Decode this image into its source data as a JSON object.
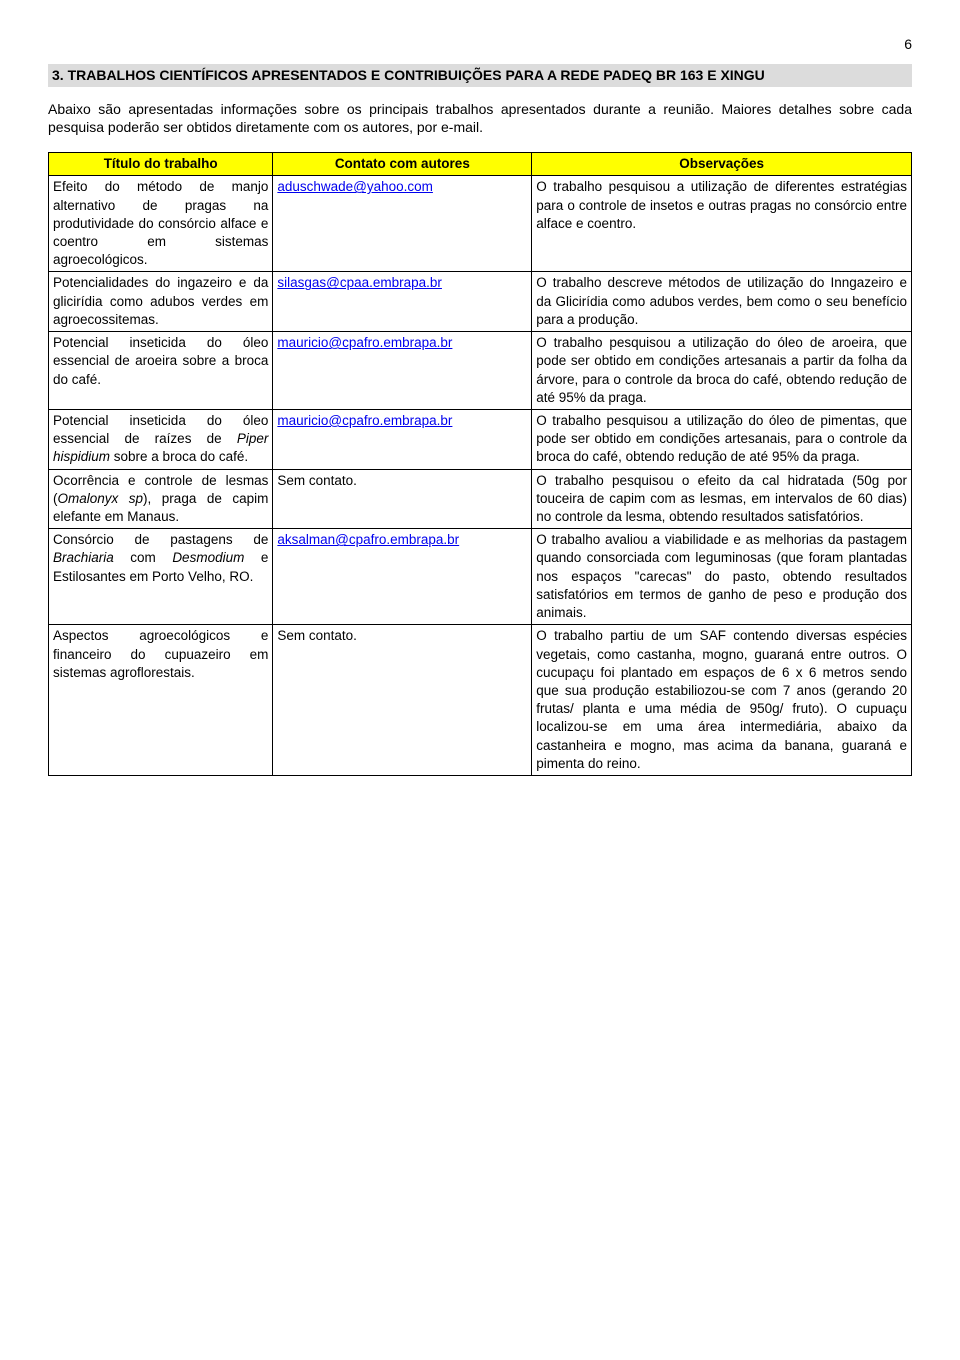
{
  "page_number": "6",
  "section_title": "3. TRABALHOS CIENTÍFICOS APRESENTADOS E CONTRIBUIÇÕES PARA A REDE PADEQ BR 163 E XINGU",
  "intro": "Abaixo são apresentadas informações sobre os principais trabalhos apresentados durante a reunião. Maiores detalhes sobre cada pesquisa poderão ser obtidos diretamente com os autores, por e-mail.",
  "headers": {
    "title": "Título do trabalho",
    "contact": "Contato com autores",
    "obs": "Observações"
  },
  "rows": [
    {
      "title_html": "Efeito do método de manjo alternativo de pragas na produtividade do consórcio alface e coentro em sistemas agroecológicos.",
      "contact_html": "<a class='mail' href='#'>aduschwade@yahoo.com</a>",
      "obs_html": "O trabalho pesquisou a utilização de diferentes estratégias para o controle de insetos e outras pragas no consórcio entre alface e coentro."
    },
    {
      "title_html": "Potencialidades do ingazeiro e da glicirídia como adubos verdes em agroecossitemas.",
      "contact_html": "<a class='mail' href='#'>silasgas@cpaa.embrapa.br</a>",
      "obs_html": "O trabalho descreve métodos de utilização do Inngazeiro e da Glicirídia como adubos verdes, bem como o seu benefício para a produção."
    },
    {
      "title_html": "Potencial inseticida do óleo essencial de aroeira sobre a broca do café.",
      "contact_html": "<a class='mail' href='#'>mauricio@cpafro.embrapa.br</a>",
      "obs_html": "O trabalho pesquisou a utilização do óleo de aroeira, que pode ser obtido em condições artesanais a partir da folha da árvore, para o controle da broca do café, obtendo redução de até 95% da praga."
    },
    {
      "title_html": "Potencial inseticida do óleo essencial de raízes de <span class='ital'>Piper hispidium</span> sobre a broca do café.",
      "contact_html": "<a class='mail' href='#'>mauricio@cpafro.embrapa.br</a>",
      "obs_html": "O trabalho pesquisou a utilização do óleo de pimentas, que pode ser obtido em condições artesanais, para o controle da broca do café, obtendo redução de até 95% da praga."
    },
    {
      "title_html": "Ocorrência e controle de lesmas (<span class='ital'>Omalonyx sp</span>), praga de capim elefante em Manaus.",
      "contact_html": "Sem contato.",
      "obs_html": "O trabalho pesquisou o efeito da cal hidratada (50g por touceira de capim com as lesmas, em intervalos de 60 dias) no controle da lesma, obtendo resultados satisfatórios."
    },
    {
      "title_html": "Consórcio de pastagens de <span class='ital'>Brachiaria</span> com <span class='ital'>Desmodium</span> e Estilosantes em Porto Velho, RO.",
      "contact_html": "<a class='mail' href='#'>aksalman@cpafro.embrapa.br</a>",
      "obs_html": "O trabalho avaliou a viabilidade e as melhorias da pastagem quando consorciada com leguminosas (que foram plantadas nos espaços \"carecas\" do pasto, obtendo resultados satisfatórios em termos de ganho de peso e produção dos animais."
    },
    {
      "title_html": "Aspectos agroecológicos e financeiro do cupuazeiro em sistemas agroflorestais.",
      "contact_html": "Sem contato.",
      "obs_html": "O trabalho partiu de um SAF contendo diversas espécies vegetais, como castanha, mogno, guaraná entre outros. O cucupaçu foi plantado em espaços de 6 x 6 metros sendo que sua produção estabiliozou-se com 7 anos (gerando 20 frutas/ planta e uma média de 950g/ fruto). O cupuaçu localizou-se em uma área intermediária, abaixo da castanheira e mogno, mas acima da banana, guaraná e pimenta do reino."
    }
  ],
  "styles": {
    "header_bg": "#ffff00",
    "section_bg": "#dcdcdc",
    "link_color": "#0000ee",
    "body_font": "Arial",
    "font_size": 14
  }
}
